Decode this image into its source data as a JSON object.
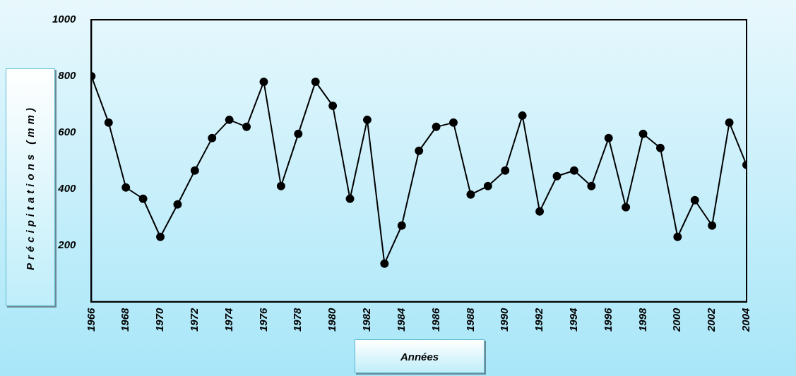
{
  "chart_data": {
    "type": "line",
    "xlabel": "Années",
    "ylabel": "Précipitations (mm)",
    "x": [
      1966,
      1967,
      1968,
      1969,
      1970,
      1971,
      1972,
      1973,
      1974,
      1975,
      1976,
      1977,
      1978,
      1979,
      1980,
      1981,
      1982,
      1983,
      1984,
      1985,
      1986,
      1987,
      1988,
      1989,
      1990,
      1991,
      1992,
      1993,
      1994,
      1995,
      1996,
      1997,
      1998,
      1999,
      2000,
      2001,
      2002,
      2003,
      2004
    ],
    "series": [
      {
        "color": "#000000",
        "values": [
          800,
          635,
          405,
          365,
          230,
          345,
          465,
          580,
          645,
          620,
          780,
          410,
          595,
          780,
          695,
          365,
          645,
          135,
          270,
          535,
          620,
          635,
          380,
          410,
          465,
          660,
          320,
          445,
          465,
          410,
          580,
          335,
          595,
          545,
          230,
          360,
          270,
          635,
          485
        ]
      }
    ],
    "xlim": [
      1966,
      2004
    ],
    "xticks": [
      1966,
      1968,
      1970,
      1972,
      1974,
      1976,
      1978,
      1980,
      1982,
      1984,
      1986,
      1988,
      1990,
      1992,
      1994,
      1996,
      1998,
      2000,
      2002,
      2004
    ],
    "ylim": [
      0,
      1000
    ],
    "yticks": [
      200,
      400,
      600,
      800,
      1000
    ],
    "grid": false,
    "legend": false,
    "marker": "circle",
    "line_style": "solid"
  }
}
